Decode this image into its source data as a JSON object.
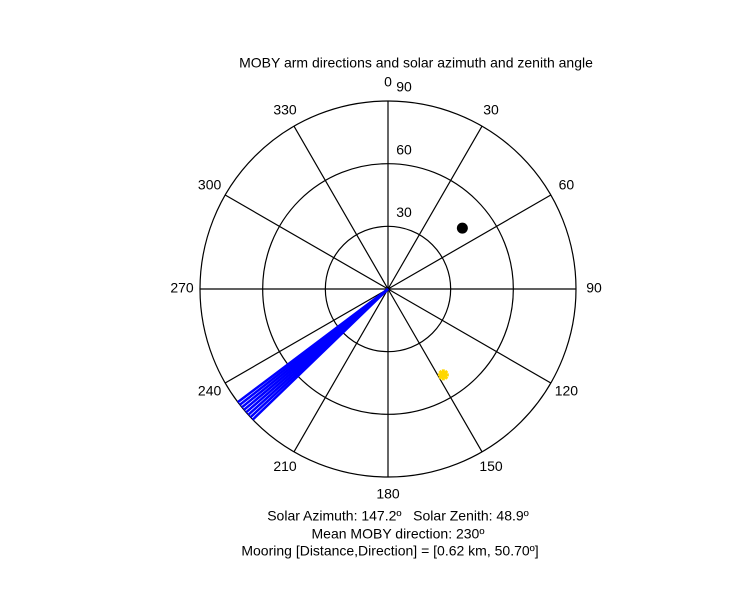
{
  "chart_data": {
    "type": "polar",
    "title": "MOBY arm directions and solar azimuth and zenith angle",
    "theta_ticks": [
      0,
      30,
      60,
      90,
      120,
      150,
      180,
      210,
      240,
      270,
      300,
      330
    ],
    "rlim": [
      0,
      90
    ],
    "r_ticks": [
      30,
      60,
      90
    ],
    "arms": {
      "color": "#0000ff",
      "theta": [
        226,
        227,
        228,
        229,
        230,
        231,
        232,
        233
      ]
    },
    "points": [
      {
        "theta": 50.7,
        "r": 46,
        "color": "#000000",
        "marker": "dot"
      },
      {
        "theta": 147.2,
        "r": 48.9,
        "color": "#ffd700",
        "marker": "star"
      }
    ],
    "annotations": [
      "Solar Azimuth: 147.2º   Solar Zenith: 48.9º",
      "Mean MOBY direction: 230º",
      "Mooring [Distance,Direction] = [0.62 km, 50.70º]"
    ]
  }
}
